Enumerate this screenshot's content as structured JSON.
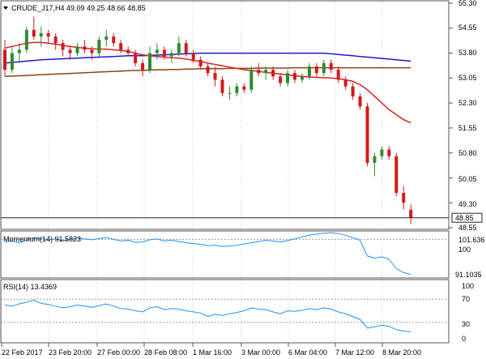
{
  "header": {
    "symbol_line": "CRUDE_J17,H4  49.09 49.25 48.66 48.85"
  },
  "main_axis": {
    "ticks": [
      "55.30",
      "54.55",
      "53.80",
      "53.05",
      "52.30",
      "51.55",
      "50.80",
      "50.05",
      "49.30",
      "48.55"
    ],
    "last_price": "48.85"
  },
  "momentum": {
    "label": "Momentum(14) 91.5823",
    "ticks": [
      "101.636",
      "100",
      "91.1035"
    ]
  },
  "rsi": {
    "label": "RSI(14) 13.4369",
    "ticks": [
      "100",
      "70",
      "30",
      "0"
    ]
  },
  "x_axis": {
    "labels": [
      "22 Feb 2017",
      "23 Feb 20:00",
      "27 Feb 00:00",
      "28 Feb 08:00",
      "1 Mar 16:00",
      "3 Mar 00:00",
      "6 Mar 04:00",
      "7 Mar 12:00",
      "8 Mar 20:00"
    ]
  },
  "colors": {
    "bull": "#2e8b2e",
    "bear": "#d11b1b",
    "ma_red": "#e02020",
    "ma_blue": "#1a1acd",
    "ma_brown": "#8b4513",
    "osc": "#1e90ff",
    "grid": "#cfcfcf"
  },
  "chart_data": {
    "type": "candlestick",
    "candles": [
      [
        53.9,
        54.2,
        53.1,
        53.3
      ],
      [
        53.3,
        54.0,
        53.2,
        53.8
      ],
      [
        53.8,
        54.1,
        53.5,
        53.9
      ],
      [
        53.9,
        54.6,
        53.8,
        54.5
      ],
      [
        54.5,
        54.9,
        54.2,
        54.3
      ],
      [
        54.3,
        54.6,
        54.0,
        54.4
      ],
      [
        54.4,
        54.5,
        54.1,
        54.3
      ],
      [
        54.3,
        54.4,
        53.9,
        54.1
      ],
      [
        54.1,
        54.2,
        53.7,
        53.9
      ],
      [
        53.9,
        54.0,
        53.6,
        53.8
      ],
      [
        53.8,
        54.1,
        53.7,
        54.0
      ],
      [
        54.0,
        54.2,
        53.8,
        53.9
      ],
      [
        53.9,
        54.0,
        53.6,
        53.8
      ],
      [
        53.8,
        54.3,
        53.7,
        54.2
      ],
      [
        54.2,
        54.5,
        54.0,
        54.3
      ],
      [
        54.3,
        54.4,
        54.0,
        54.1
      ],
      [
        54.1,
        54.2,
        53.8,
        53.9
      ],
      [
        53.9,
        54.0,
        53.7,
        53.8
      ],
      [
        53.8,
        53.9,
        53.4,
        53.5
      ],
      [
        53.5,
        53.6,
        53.1,
        53.3
      ],
      [
        53.3,
        54.0,
        53.2,
        53.8
      ],
      [
        53.8,
        54.1,
        53.6,
        53.9
      ],
      [
        53.9,
        54.0,
        53.6,
        53.7
      ],
      [
        53.7,
        53.9,
        53.5,
        53.8
      ],
      [
        53.8,
        54.3,
        53.7,
        54.1
      ],
      [
        54.1,
        54.2,
        53.7,
        53.8
      ],
      [
        53.8,
        53.9,
        53.5,
        53.6
      ],
      [
        53.6,
        53.7,
        53.3,
        53.4
      ],
      [
        53.4,
        53.5,
        53.1,
        53.2
      ],
      [
        53.2,
        53.4,
        52.8,
        53.0
      ],
      [
        53.0,
        53.1,
        52.5,
        52.6
      ],
      [
        52.6,
        52.8,
        52.4,
        52.6
      ],
      [
        52.6,
        52.9,
        52.5,
        52.8
      ],
      [
        52.8,
        52.9,
        52.6,
        52.7
      ],
      [
        52.7,
        53.4,
        52.6,
        53.3
      ],
      [
        53.3,
        53.5,
        53.1,
        53.2
      ],
      [
        53.2,
        53.4,
        53.0,
        53.3
      ],
      [
        53.3,
        53.4,
        53.0,
        53.1
      ],
      [
        53.1,
        53.2,
        52.8,
        52.9
      ],
      [
        52.9,
        53.3,
        52.8,
        53.2
      ],
      [
        53.2,
        53.3,
        52.9,
        53.0
      ],
      [
        53.0,
        53.2,
        52.9,
        53.1
      ],
      [
        53.1,
        53.5,
        53.0,
        53.4
      ],
      [
        53.4,
        53.5,
        53.1,
        53.2
      ],
      [
        53.2,
        53.6,
        53.1,
        53.5
      ],
      [
        53.5,
        53.6,
        53.2,
        53.3
      ],
      [
        53.3,
        53.4,
        52.9,
        53.0
      ],
      [
        53.0,
        53.1,
        52.7,
        52.8
      ],
      [
        52.8,
        52.9,
        52.4,
        52.5
      ],
      [
        52.5,
        52.6,
        52.1,
        52.2
      ],
      [
        52.2,
        52.3,
        50.4,
        50.5
      ],
      [
        50.5,
        50.8,
        50.1,
        50.7
      ],
      [
        50.7,
        51.0,
        50.6,
        50.9
      ],
      [
        50.9,
        51.0,
        50.6,
        50.7
      ],
      [
        50.7,
        50.8,
        49.5,
        49.6
      ],
      [
        49.6,
        49.8,
        49.1,
        49.3
      ],
      [
        49.09,
        49.25,
        48.66,
        48.85
      ]
    ],
    "ma_red": [
      53.95,
      54.0,
      54.05,
      54.1,
      54.12,
      54.12,
      54.1,
      54.07,
      54.03,
      54.0,
      53.97,
      53.95,
      53.93,
      53.92,
      53.92,
      53.9,
      53.88,
      53.85,
      53.8,
      53.75,
      53.72,
      53.7,
      53.68,
      53.66,
      53.65,
      53.62,
      53.58,
      53.55,
      53.5,
      53.46,
      53.42,
      53.38,
      53.34,
      53.3,
      53.28,
      53.25,
      53.22,
      53.2,
      53.17,
      53.15,
      53.12,
      53.1,
      53.08,
      53.07,
      53.06,
      53.05,
      53.03,
      53.0,
      52.95,
      52.85,
      52.7,
      52.5,
      52.3,
      52.1,
      51.95,
      51.8,
      51.7
    ],
    "ma_blue": [
      53.5,
      53.52,
      53.54,
      53.56,
      53.58,
      53.6,
      53.61,
      53.62,
      53.63,
      53.64,
      53.65,
      53.66,
      53.67,
      53.68,
      53.69,
      53.7,
      53.71,
      53.72,
      53.72,
      53.72,
      53.73,
      53.74,
      53.75,
      53.76,
      53.77,
      53.78,
      53.79,
      53.8,
      53.8,
      53.8,
      53.8,
      53.8,
      53.8,
      53.8,
      53.8,
      53.8,
      53.8,
      53.8,
      53.8,
      53.8,
      53.8,
      53.8,
      53.8,
      53.8,
      53.8,
      53.78,
      53.76,
      53.74,
      53.72,
      53.7,
      53.68,
      53.66,
      53.64,
      53.62,
      53.6,
      53.58,
      53.56
    ],
    "ma_brown": [
      53.1,
      53.11,
      53.12,
      53.13,
      53.14,
      53.15,
      53.16,
      53.17,
      53.18,
      53.19,
      53.2,
      53.21,
      53.22,
      53.23,
      53.24,
      53.25,
      53.26,
      53.27,
      53.28,
      53.28,
      53.29,
      53.3,
      53.3,
      53.31,
      53.31,
      53.32,
      53.32,
      53.33,
      53.33,
      53.33,
      53.33,
      53.34,
      53.34,
      53.34,
      53.34,
      53.35,
      53.35,
      53.35,
      53.35,
      53.35,
      53.36,
      53.36,
      53.36,
      53.36,
      53.36,
      53.36,
      53.36,
      53.36,
      53.36,
      53.36,
      53.36,
      53.36,
      53.36,
      53.36,
      53.36,
      53.36,
      53.36
    ],
    "momentum": [
      99.4,
      99.6,
      99.2,
      99.8,
      100.4,
      100.2,
      99.9,
      100.1,
      99.7,
      100.0,
      100.3,
      100.1,
      99.9,
      100.2,
      100.4,
      100.0,
      99.6,
      99.8,
      99.3,
      99.4,
      99.9,
      100.1,
      99.6,
      99.8,
      99.5,
      99.2,
      99.0,
      98.8,
      98.5,
      98.6,
      98.3,
      98.4,
      98.6,
      98.9,
      99.2,
      99.5,
      99.8,
      99.6,
      99.4,
      99.7,
      100.1,
      100.6,
      101.0,
      101.3,
      101.5,
      101.6,
      101.4,
      101.0,
      100.4,
      99.8,
      96.0,
      95.5,
      95.8,
      95.2,
      93.0,
      92.0,
      91.58
    ],
    "rsi": [
      60,
      58,
      62,
      65,
      68,
      63,
      61,
      58,
      55,
      57,
      60,
      58,
      56,
      59,
      62,
      58,
      54,
      53,
      50,
      48,
      55,
      57,
      52,
      54,
      53,
      50,
      48,
      46,
      40,
      44,
      42,
      45,
      47,
      50,
      55,
      53,
      52,
      48,
      45,
      50,
      49,
      51,
      54,
      52,
      55,
      53,
      48,
      45,
      40,
      35,
      20,
      22,
      25,
      23,
      17,
      15,
      13.44
    ]
  }
}
